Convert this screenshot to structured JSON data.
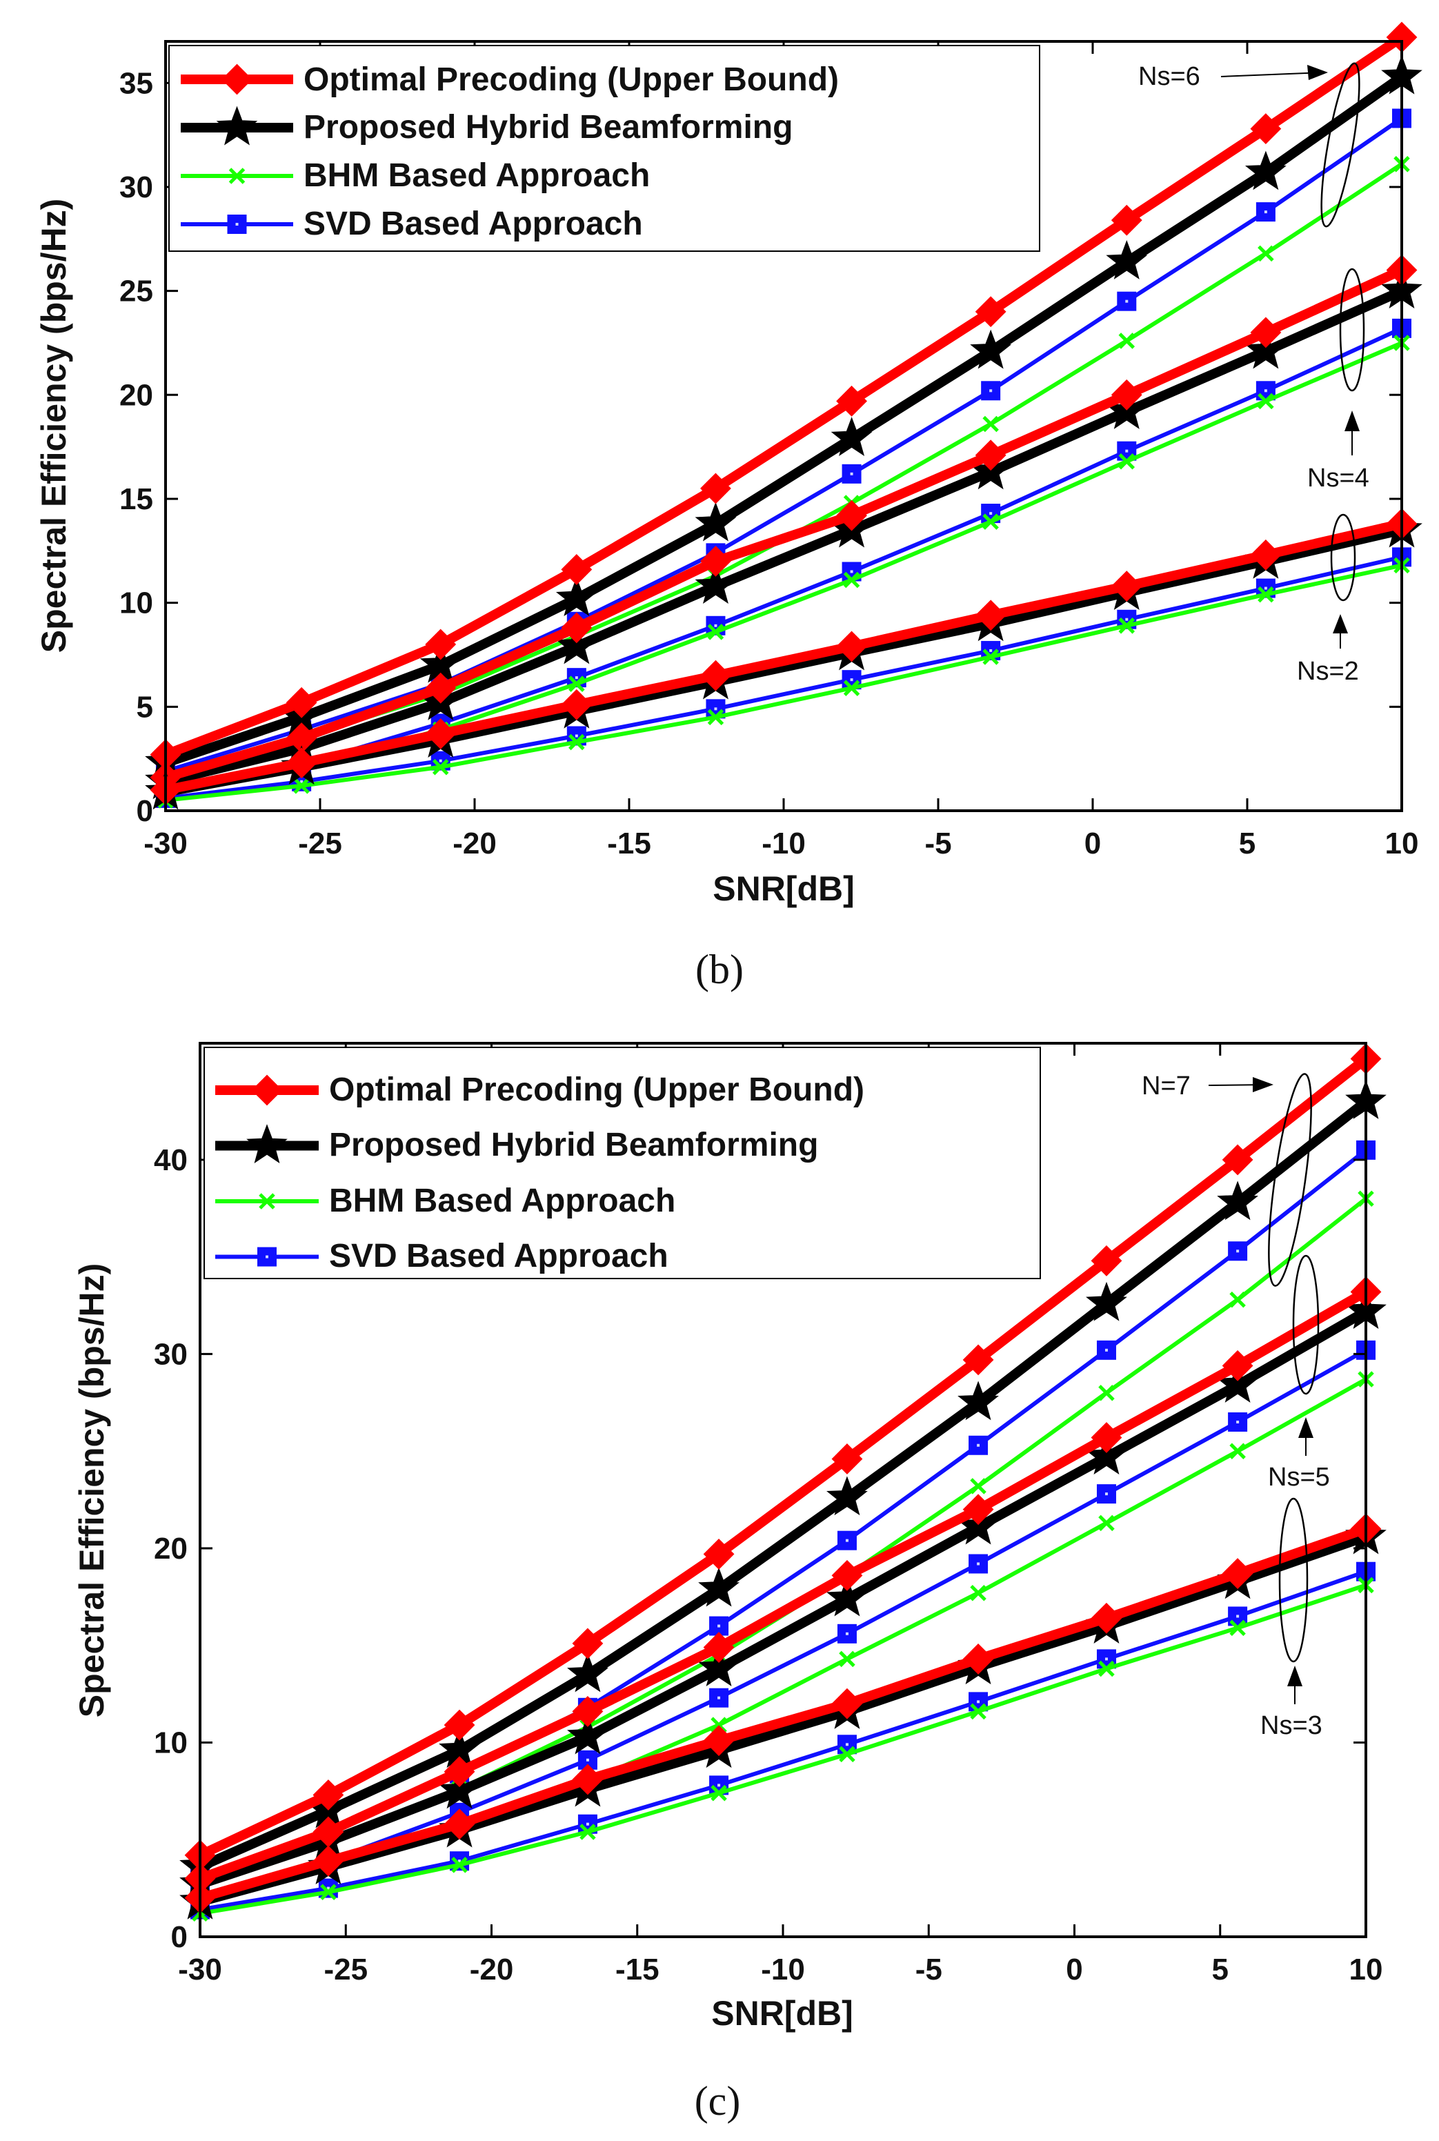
{
  "figure": {
    "panels": [
      "(b)",
      "(c)"
    ]
  },
  "colors": {
    "optimal": "#ff0000",
    "proposed": "#000000",
    "bhm": "#19ff00",
    "svd": "#1010ff",
    "axis": "#000000"
  },
  "chart_data": [
    {
      "type": "line",
      "caption": "(b)",
      "xlabel": "SNR[dB]",
      "ylabel": "Spectral Efficiency (bps/Hz)",
      "xlim": [
        -30,
        10
      ],
      "ylim": [
        0,
        37
      ],
      "xticks": [
        -30,
        -25,
        -20,
        -15,
        -10,
        -5,
        0,
        5,
        10
      ],
      "yticks": [
        0,
        5,
        10,
        15,
        20,
        25,
        30,
        35
      ],
      "x": [
        -30,
        -25.6,
        -21.1,
        -16.7,
        -12.2,
        -7.8,
        -3.3,
        1.1,
        5.6,
        10
      ],
      "legend": [
        {
          "name": "Optimal Precoding (Upper Bound)",
          "key": "optimal"
        },
        {
          "name": "Proposed Hybrid Beamforming",
          "key": "proposed"
        },
        {
          "name": "BHM Based Approach",
          "key": "bhm"
        },
        {
          "name": "SVD Based Approach",
          "key": "svd"
        }
      ],
      "groups": [
        {
          "label": "Ns=6",
          "series": {
            "optimal": [
              2.7,
              5.2,
              8.0,
              11.6,
              15.5,
              19.7,
              24.0,
              28.4,
              32.8,
              37.2
            ],
            "proposed": [
              2.3,
              4.5,
              7.0,
              10.2,
              13.8,
              17.9,
              22.1,
              26.4,
              30.7,
              35.3
            ],
            "bhm": [
              1.6,
              3.5,
              5.6,
              8.4,
              11.3,
              14.8,
              18.6,
              22.6,
              26.8,
              31.1
            ],
            "svd": [
              1.9,
              3.9,
              6.1,
              9.1,
              12.4,
              16.2,
              20.2,
              24.5,
              28.8,
              33.3
            ]
          }
        },
        {
          "label": "Ns=4",
          "series": {
            "optimal": [
              1.6,
              3.5,
              5.9,
              8.8,
              12.0,
              14.2,
              17.1,
              20.0,
              23.0,
              26.0
            ],
            "proposed": [
              1.4,
              3.0,
              5.2,
              7.9,
              10.8,
              13.5,
              16.3,
              19.2,
              22.1,
              25.0
            ],
            "bhm": [
              0.8,
              2.0,
              3.9,
              6.1,
              8.6,
              11.1,
              13.9,
              16.8,
              19.7,
              22.5
            ],
            "svd": [
              1.0,
              2.2,
              4.2,
              6.4,
              8.9,
              11.5,
              14.3,
              17.3,
              20.2,
              23.2
            ]
          }
        },
        {
          "label": "Ns=2",
          "series": {
            "optimal": [
              1.0,
              2.3,
              3.7,
              5.1,
              6.5,
              7.9,
              9.4,
              10.8,
              12.3,
              13.8
            ],
            "proposed": [
              0.9,
              2.1,
              3.4,
              4.8,
              6.2,
              7.6,
              9.0,
              10.5,
              12.0,
              13.5
            ],
            "bhm": [
              0.5,
              1.2,
              2.1,
              3.3,
              4.5,
              5.9,
              7.4,
              8.9,
              10.4,
              11.8
            ],
            "svd": [
              0.6,
              1.4,
              2.4,
              3.6,
              4.9,
              6.3,
              7.7,
              9.2,
              10.7,
              12.2
            ]
          }
        }
      ]
    },
    {
      "type": "line",
      "caption": "(c)",
      "xlabel": "SNR[dB]",
      "ylabel": "Spectral Efficiency (bps/Hz)",
      "xlim": [
        -30,
        10
      ],
      "ylim": [
        0,
        46
      ],
      "xticks": [
        -30,
        -25,
        -20,
        -15,
        -10,
        -5,
        0,
        5,
        10
      ],
      "yticks": [
        0,
        10,
        20,
        30,
        40
      ],
      "x": [
        -30,
        -25.6,
        -21.1,
        -16.7,
        -12.2,
        -7.8,
        -3.3,
        1.1,
        5.6,
        10
      ],
      "legend": [
        {
          "name": "Optimal Precoding (Upper Bound)",
          "key": "optimal"
        },
        {
          "name": "Proposed Hybrid Beamforming",
          "key": "proposed"
        },
        {
          "name": "BHM Based Approach",
          "key": "bhm"
        },
        {
          "name": "SVD Based Approach",
          "key": "svd"
        }
      ],
      "groups": [
        {
          "label": "N=7",
          "series": {
            "optimal": [
              4.2,
              7.3,
              10.9,
              15.1,
              19.7,
              24.6,
              29.7,
              34.8,
              40.0,
              45.2
            ],
            "proposed": [
              3.6,
              6.5,
              9.6,
              13.5,
              17.9,
              22.6,
              27.5,
              32.6,
              37.8,
              43.0
            ],
            "bhm": [
              2.6,
              4.9,
              7.6,
              10.8,
              14.5,
              18.6,
              23.2,
              28.0,
              32.8,
              38.0
            ],
            "svd": [
              3.0,
              5.4,
              8.4,
              11.8,
              16.0,
              20.4,
              25.3,
              30.2,
              35.3,
              40.5
            ]
          }
        },
        {
          "label": "Ns=5",
          "series": {
            "optimal": [
              3.0,
              5.4,
              8.5,
              11.6,
              14.9,
              18.6,
              22.0,
              25.7,
              29.4,
              33.2
            ],
            "proposed": [
              2.7,
              4.9,
              7.5,
              10.3,
              13.8,
              17.4,
              21.1,
              24.7,
              28.4,
              32.2
            ],
            "bhm": [
              1.7,
              3.5,
              5.6,
              8.0,
              10.9,
              14.3,
              17.7,
              21.3,
              25.0,
              28.7
            ],
            "svd": [
              2.1,
              3.9,
              6.4,
              9.1,
              12.3,
              15.6,
              19.2,
              22.8,
              26.5,
              30.2
            ]
          }
        },
        {
          "label": "Ns=3",
          "series": {
            "optimal": [
              2.0,
              3.9,
              5.8,
              8.1,
              10.1,
              12.0,
              14.3,
              16.4,
              18.7,
              21.0
            ],
            "proposed": [
              1.8,
              3.6,
              5.5,
              7.6,
              9.6,
              11.6,
              13.9,
              16.0,
              18.3,
              20.6
            ],
            "bhm": [
              1.2,
              2.3,
              3.7,
              5.4,
              7.4,
              9.4,
              11.6,
              13.8,
              15.9,
              18.1
            ],
            "svd": [
              1.4,
              2.5,
              3.9,
              5.8,
              7.8,
              9.9,
              12.1,
              14.3,
              16.5,
              18.8
            ]
          }
        }
      ]
    }
  ]
}
